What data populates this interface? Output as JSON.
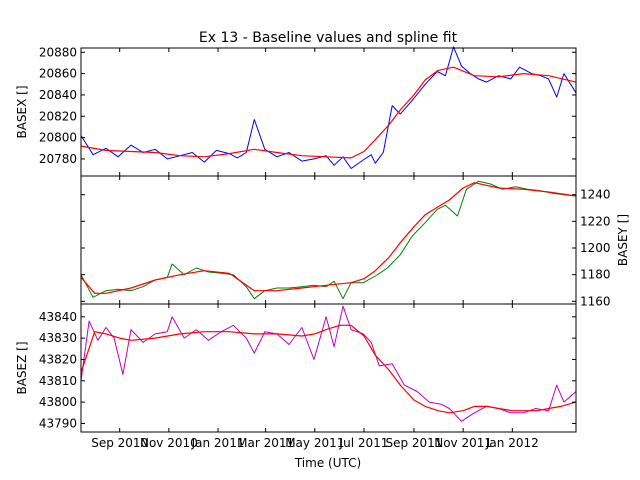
{
  "title": "Ex 13 - Baseline values and spline fit",
  "xlabel": "Time (UTC)",
  "chart_data": [
    {
      "type": "line",
      "ylabel": "BASEX []",
      "ylabel_side": "left",
      "x_range": [
        "2010-07-15",
        "2012-03-20"
      ],
      "ylim": [
        20764,
        20884
      ],
      "yticks": [
        20780,
        20800,
        20820,
        20840,
        20860,
        20880
      ],
      "series": [
        {
          "color": "#0000ff",
          "x": [
            "2010-07-15",
            "2010-07-30",
            "2010-08-15",
            "2010-08-30",
            "2010-09-15",
            "2010-09-30",
            "2010-10-15",
            "2010-10-30",
            "2010-11-15",
            "2010-11-30",
            "2010-12-15",
            "2010-12-30",
            "2011-01-15",
            "2011-01-25",
            "2011-02-05",
            "2011-02-15",
            "2011-02-28",
            "2011-03-15",
            "2011-03-30",
            "2011-04-15",
            "2011-04-30",
            "2011-05-15",
            "2011-05-25",
            "2011-06-05",
            "2011-06-15",
            "2011-06-30",
            "2011-07-10",
            "2011-07-15",
            "2011-07-25",
            "2011-08-05",
            "2011-08-15",
            "2011-08-30",
            "2011-09-15",
            "2011-09-30",
            "2011-10-10",
            "2011-10-20",
            "2011-10-30",
            "2011-11-10",
            "2011-11-20",
            "2011-11-30",
            "2011-12-15",
            "2011-12-30",
            "2012-01-10",
            "2012-01-25",
            "2012-02-05",
            "2012-02-15",
            "2012-02-25",
            "2012-03-05",
            "2012-03-20"
          ],
          "values": [
            20802,
            20784,
            20790,
            20782,
            20793,
            20786,
            20789,
            20780,
            20783,
            20786,
            20777,
            20788,
            20785,
            20781,
            20786,
            20817,
            20789,
            20782,
            20786,
            20778,
            20780,
            20783,
            20774,
            20782,
            20771,
            20779,
            20784,
            20776,
            20786,
            20830,
            20822,
            20835,
            20850,
            20862,
            20858,
            20885,
            20867,
            20860,
            20855,
            20852,
            20858,
            20855,
            20866,
            20860,
            20858,
            20855,
            20838,
            20860,
            20842
          ]
        },
        {
          "color": "#ff0000",
          "x": [
            "2010-07-15",
            "2010-08-15",
            "2010-09-15",
            "2010-10-15",
            "2010-11-15",
            "2010-12-15",
            "2011-01-15",
            "2011-02-15",
            "2011-03-15",
            "2011-04-15",
            "2011-05-15",
            "2011-06-15",
            "2011-07-01",
            "2011-07-15",
            "2011-08-01",
            "2011-08-15",
            "2011-09-01",
            "2011-09-15",
            "2011-10-01",
            "2011-10-20",
            "2011-11-15",
            "2011-12-15",
            "2012-01-15",
            "2012-02-15",
            "2012-03-20"
          ],
          "values": [
            20792,
            20788,
            20787,
            20786,
            20783,
            20782,
            20785,
            20789,
            20786,
            20783,
            20782,
            20781,
            20787,
            20798,
            20812,
            20826,
            20840,
            20854,
            20863,
            20866,
            20858,
            20857,
            20860,
            20858,
            20852
          ]
        }
      ]
    },
    {
      "type": "line",
      "ylabel": "BASEY []",
      "ylabel_side": "right",
      "x_range": [
        "2010-07-15",
        "2012-03-20"
      ],
      "ylim": [
        1158,
        1254
      ],
      "yticks": [
        1160,
        1180,
        1200,
        1220,
        1240
      ],
      "series": [
        {
          "color": "#008000",
          "x": [
            "2010-07-15",
            "2010-07-30",
            "2010-08-15",
            "2010-08-30",
            "2010-09-15",
            "2010-09-30",
            "2010-10-15",
            "2010-10-30",
            "2010-11-05",
            "2010-11-20",
            "2010-12-05",
            "2010-12-20",
            "2011-01-05",
            "2011-01-20",
            "2011-02-05",
            "2011-02-15",
            "2011-02-28",
            "2011-03-15",
            "2011-03-30",
            "2011-04-15",
            "2011-04-30",
            "2011-05-15",
            "2011-05-25",
            "2011-06-05",
            "2011-06-15",
            "2011-06-30",
            "2011-07-15",
            "2011-07-30",
            "2011-08-15",
            "2011-08-30",
            "2011-09-15",
            "2011-09-30",
            "2011-10-10",
            "2011-10-25",
            "2011-11-05",
            "2011-11-20",
            "2011-12-05",
            "2011-12-20",
            "2012-01-05",
            "2012-01-20",
            "2012-02-05",
            "2012-02-20",
            "2012-03-05",
            "2012-03-20"
          ],
          "values": [
            1180,
            1163,
            1168,
            1169,
            1168,
            1171,
            1176,
            1178,
            1188,
            1180,
            1185,
            1182,
            1181,
            1180,
            1171,
            1162,
            1168,
            1170,
            1170,
            1171,
            1172,
            1171,
            1175,
            1162,
            1174,
            1174,
            1179,
            1185,
            1195,
            1209,
            1219,
            1229,
            1232,
            1224,
            1244,
            1250,
            1248,
            1244,
            1246,
            1244,
            1243,
            1241,
            1240,
            1239
          ]
        },
        {
          "color": "#ff0000",
          "x": [
            "2010-07-15",
            "2010-08-01",
            "2010-08-15",
            "2010-09-15",
            "2010-10-15",
            "2010-11-15",
            "2010-12-15",
            "2011-01-15",
            "2011-02-15",
            "2011-03-15",
            "2011-04-15",
            "2011-05-15",
            "2011-06-15",
            "2011-07-01",
            "2011-07-15",
            "2011-08-01",
            "2011-08-15",
            "2011-09-01",
            "2011-09-15",
            "2011-10-01",
            "2011-10-15",
            "2011-11-01",
            "2011-11-15",
            "2011-12-15",
            "2012-01-15",
            "2012-02-15",
            "2012-03-20"
          ],
          "values": [
            1178,
            1166,
            1166,
            1170,
            1176,
            1180,
            1183,
            1181,
            1168,
            1168,
            1170,
            1172,
            1174,
            1177,
            1183,
            1193,
            1204,
            1216,
            1225,
            1231,
            1236,
            1245,
            1249,
            1245,
            1244,
            1242,
            1239
          ]
        }
      ]
    },
    {
      "type": "line",
      "ylabel": "BASEZ []",
      "ylabel_side": "left",
      "x_range": [
        "2010-07-15",
        "2012-03-20"
      ],
      "ylim": [
        43786,
        43846
      ],
      "yticks": [
        43790,
        43800,
        43810,
        43820,
        43830,
        43840
      ],
      "series": [
        {
          "color": "#bf00bf",
          "x": [
            "2010-07-15",
            "2010-07-25",
            "2010-08-05",
            "2010-08-15",
            "2010-08-25",
            "2010-09-05",
            "2010-09-15",
            "2010-09-30",
            "2010-10-15",
            "2010-10-30",
            "2010-11-05",
            "2010-11-20",
            "2010-12-05",
            "2010-12-20",
            "2011-01-05",
            "2011-01-20",
            "2011-02-05",
            "2011-02-15",
            "2011-02-28",
            "2011-03-15",
            "2011-03-30",
            "2011-04-15",
            "2011-04-30",
            "2011-05-15",
            "2011-05-25",
            "2011-06-05",
            "2011-06-15",
            "2011-06-30",
            "2011-07-10",
            "2011-07-20",
            "2011-08-05",
            "2011-08-20",
            "2011-09-05",
            "2011-09-20",
            "2011-10-05",
            "2011-10-15",
            "2011-10-30",
            "2011-11-15",
            "2011-11-30",
            "2011-12-15",
            "2011-12-30",
            "2012-01-15",
            "2012-01-30",
            "2012-02-15",
            "2012-02-25",
            "2012-03-05",
            "2012-03-20"
          ],
          "values": [
            43810,
            43838,
            43829,
            43835,
            43830,
            43813,
            43834,
            43828,
            43832,
            43833,
            43840,
            43830,
            43834,
            43829,
            43833,
            43836,
            43830,
            43823,
            43833,
            43832,
            43827,
            43835,
            43820,
            43840,
            43826,
            43845,
            43834,
            43832,
            43828,
            43817,
            43818,
            43808,
            43805,
            43800,
            43799,
            43797,
            43791,
            43795,
            43798,
            43797,
            43795,
            43795,
            43797,
            43796,
            43808,
            43800,
            43805
          ]
        },
        {
          "color": "#ff0000",
          "x": [
            "2010-07-15",
            "2010-08-01",
            "2010-08-15",
            "2010-09-01",
            "2010-09-15",
            "2010-10-15",
            "2010-11-15",
            "2010-12-15",
            "2011-01-15",
            "2011-02-15",
            "2011-03-15",
            "2011-04-15",
            "2011-05-01",
            "2011-05-15",
            "2011-06-01",
            "2011-06-15",
            "2011-07-01",
            "2011-07-15",
            "2011-08-01",
            "2011-08-15",
            "2011-09-01",
            "2011-09-15",
            "2011-10-01",
            "2011-10-15",
            "2011-11-01",
            "2011-11-15",
            "2011-12-01",
            "2011-12-15",
            "2012-01-01",
            "2012-01-15",
            "2012-02-01",
            "2012-02-15",
            "2012-03-01",
            "2012-03-20"
          ],
          "values": [
            43814,
            43833,
            43832,
            43830,
            43829,
            43830,
            43832,
            43833,
            43833,
            43832,
            43832,
            43831,
            43832,
            43834,
            43836,
            43836,
            43831,
            43822,
            43815,
            43808,
            43801,
            43798,
            43796,
            43795,
            43796,
            43798,
            43798,
            43797,
            43796,
            43796,
            43796,
            43797,
            43798,
            43800
          ]
        }
      ]
    }
  ],
  "xticks": [
    {
      "date": "2010-09-01",
      "label": "Sep 2010"
    },
    {
      "date": "2010-11-01",
      "label": "Nov 2010"
    },
    {
      "date": "2011-01-01",
      "label": "Jan 2011"
    },
    {
      "date": "2011-03-01",
      "label": "Mar 2011"
    },
    {
      "date": "2011-05-01",
      "label": "May 2011"
    },
    {
      "date": "2011-07-01",
      "label": "Jul 2011"
    },
    {
      "date": "2011-09-01",
      "label": "Sep 2011"
    },
    {
      "date": "2011-11-01",
      "label": "Nov 2011"
    },
    {
      "date": "2012-01-01",
      "label": "Jan 2012"
    }
  ]
}
